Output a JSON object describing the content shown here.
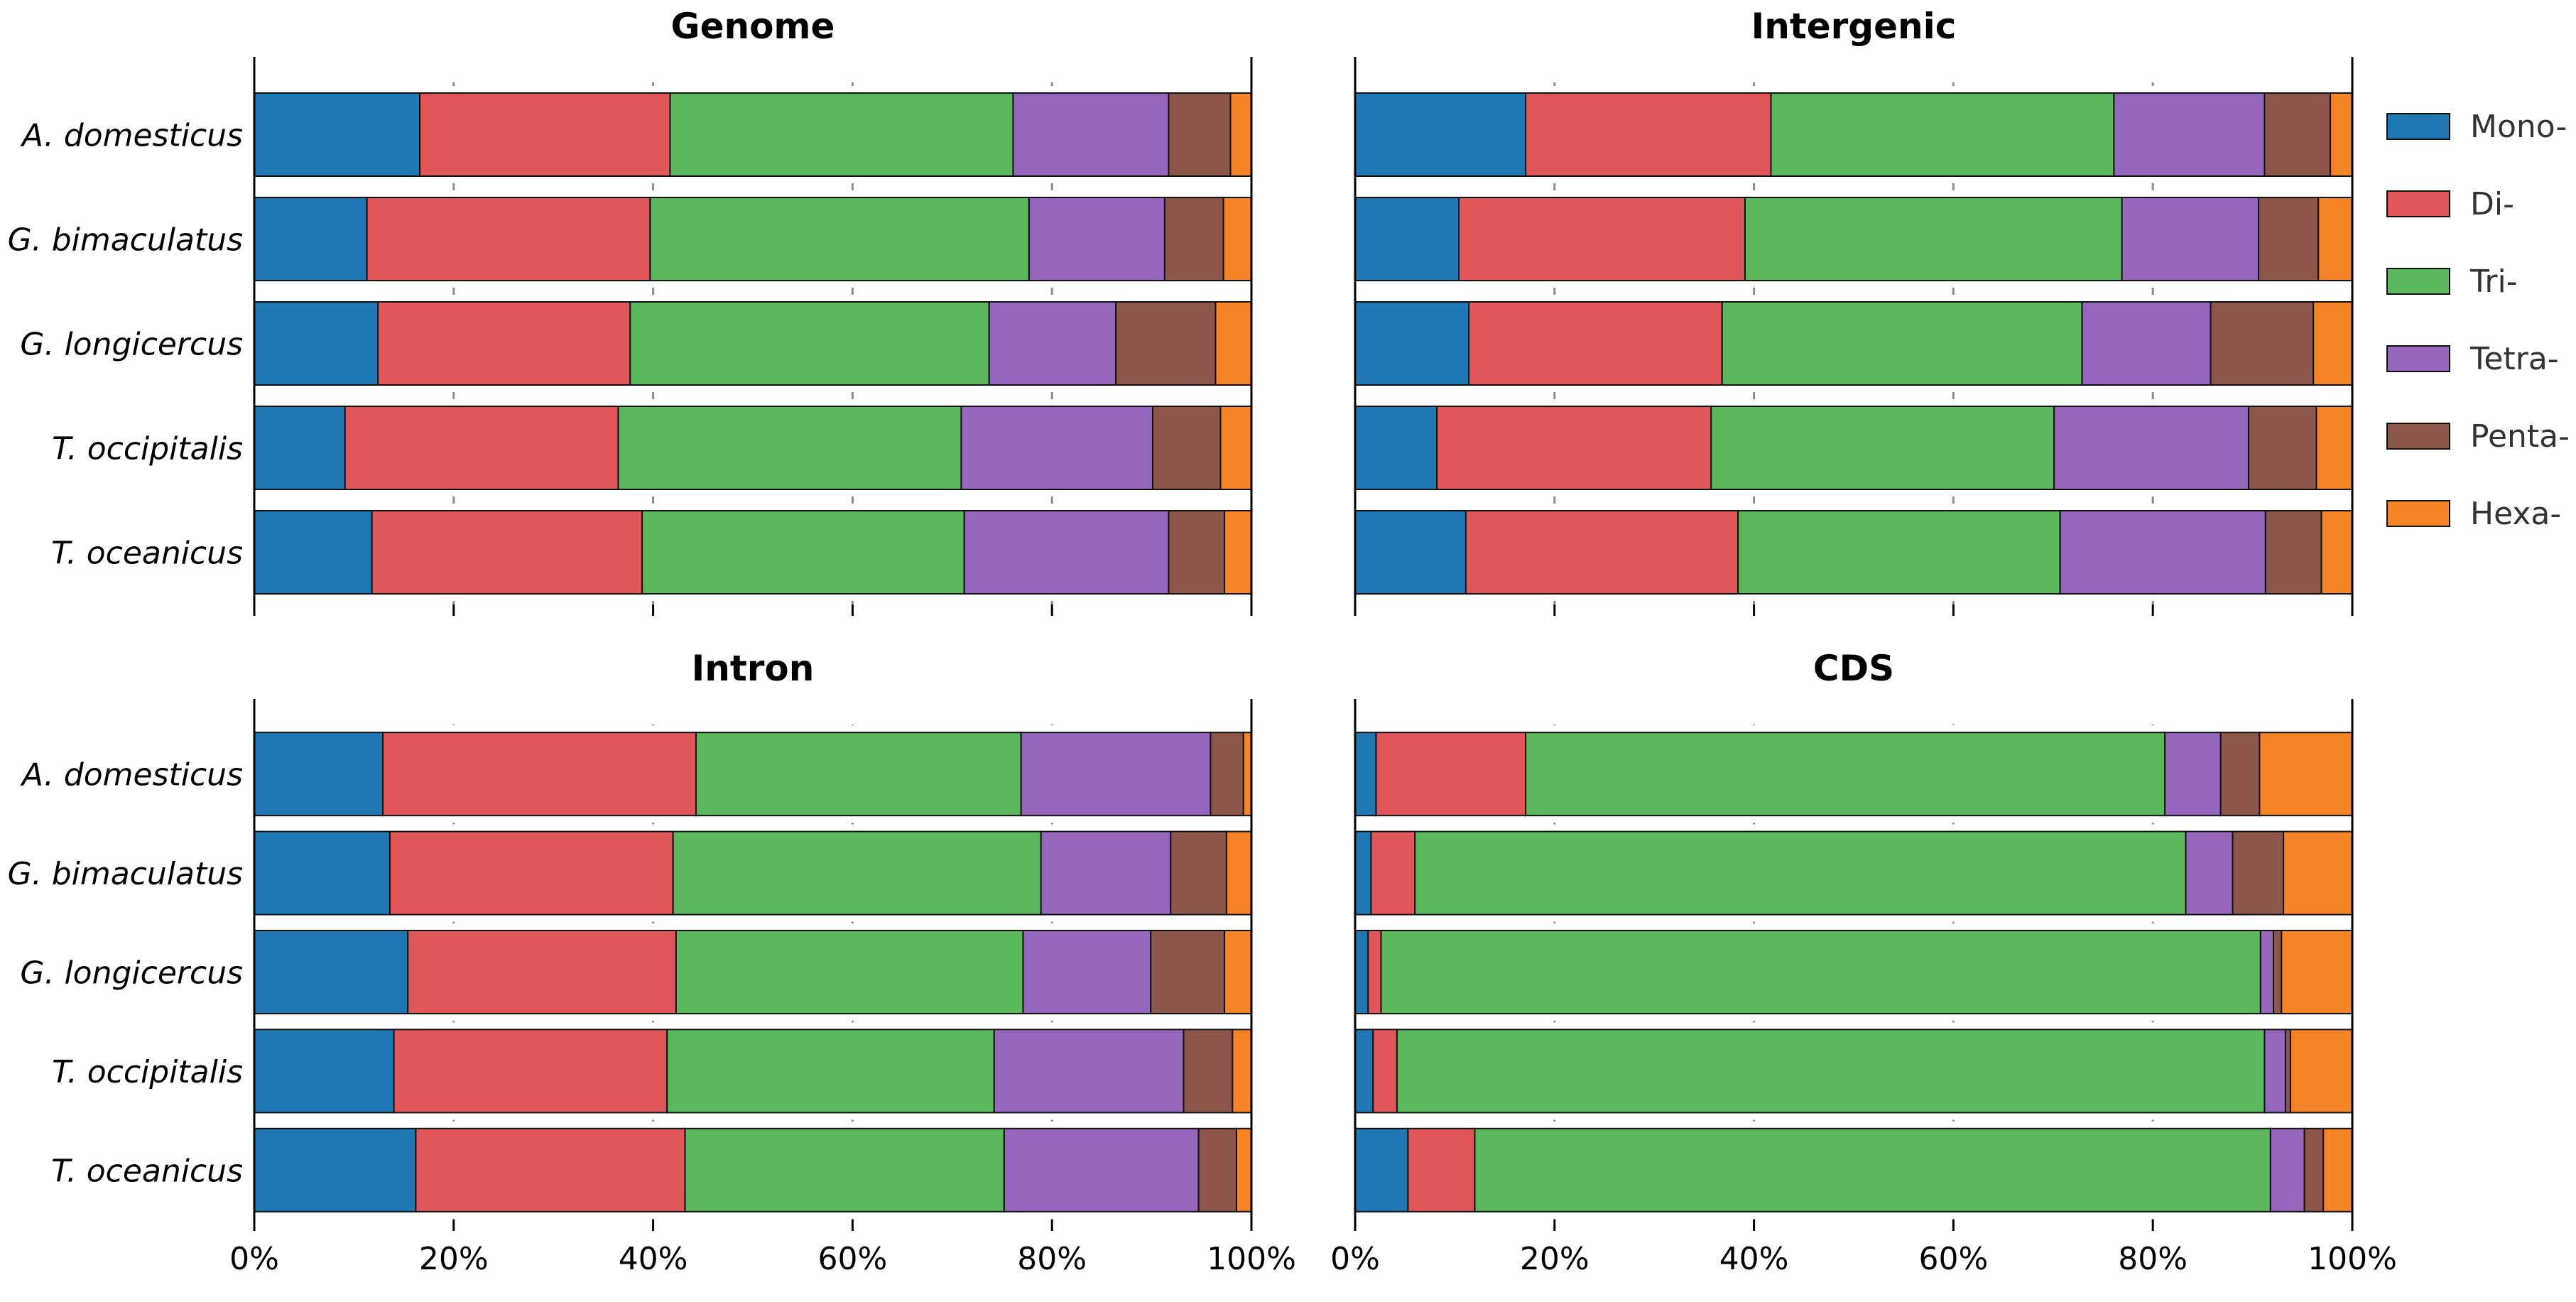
{
  "chart_data": {
    "type": "bar",
    "orientation": "horizontal",
    "stacked": true,
    "legend": {
      "position": "right",
      "entries": [
        {
          "name": "Mono-",
          "color": "#1f77b4"
        },
        {
          "name": "Di-",
          "color": "#e15759"
        },
        {
          "name": "Tri-",
          "color": "#5cb85c"
        },
        {
          "name": "Tetra-",
          "color": "#9467bd"
        },
        {
          "name": "Penta-",
          "color": "#8c564b"
        },
        {
          "name": "Hexa-",
          "color": "#f58426"
        }
      ]
    },
    "xaxis": {
      "range": [
        0,
        100
      ],
      "ticks": [
        "0%",
        "20%",
        "40%",
        "60%",
        "80%",
        "100%"
      ],
      "grid": true
    },
    "categories": [
      "A. domesticus",
      "G. bimaculatus",
      "G. longicercus",
      "T. occipitalis",
      "T. oceanicus"
    ],
    "panels": [
      {
        "title": "Genome",
        "series": [
          {
            "name": "Mono-",
            "values": [
              16.6,
              11.3,
              12.4,
              9.1,
              11.8
            ]
          },
          {
            "name": "Di-",
            "values": [
              25.1,
              28.4,
              25.3,
              27.4,
              27.1
            ]
          },
          {
            "name": "Tri-",
            "values": [
              34.4,
              38.0,
              36.0,
              34.4,
              32.3
            ]
          },
          {
            "name": "Tetra-",
            "values": [
              15.6,
              13.6,
              12.7,
              19.2,
              20.5
            ]
          },
          {
            "name": "Penta-",
            "values": [
              6.2,
              5.9,
              10.0,
              6.8,
              5.6
            ]
          },
          {
            "name": "Hexa-",
            "values": [
              2.1,
              2.8,
              3.6,
              3.1,
              2.7
            ]
          }
        ]
      },
      {
        "title": "Intergenic",
        "series": [
          {
            "name": "Mono-",
            "values": [
              17.1,
              10.4,
              11.4,
              8.2,
              11.1
            ]
          },
          {
            "name": "Di-",
            "values": [
              24.6,
              28.7,
              25.4,
              27.5,
              27.3
            ]
          },
          {
            "name": "Tri-",
            "values": [
              34.4,
              37.8,
              36.1,
              34.4,
              32.3
            ]
          },
          {
            "name": "Tetra-",
            "values": [
              15.1,
              13.7,
              12.9,
              19.5,
              20.6
            ]
          },
          {
            "name": "Penta-",
            "values": [
              6.6,
              6.0,
              10.3,
              6.8,
              5.6
            ]
          },
          {
            "name": "Hexa-",
            "values": [
              2.2,
              3.4,
              3.9,
              3.6,
              3.1
            ]
          }
        ]
      },
      {
        "title": "Intron",
        "series": [
          {
            "name": "Mono-",
            "values": [
              12.9,
              13.6,
              15.4,
              14.0,
              16.2
            ]
          },
          {
            "name": "Di-",
            "values": [
              31.4,
              28.4,
              26.9,
              27.4,
              27.0
            ]
          },
          {
            "name": "Tri-",
            "values": [
              32.6,
              36.9,
              34.8,
              32.8,
              32.0
            ]
          },
          {
            "name": "Tetra-",
            "values": [
              19.0,
              13.0,
              12.8,
              19.0,
              19.5
            ]
          },
          {
            "name": "Penta-",
            "values": [
              3.3,
              5.6,
              7.4,
              4.9,
              3.8
            ]
          },
          {
            "name": "Hexa-",
            "values": [
              0.8,
              2.5,
              2.7,
              1.9,
              1.5
            ]
          }
        ]
      },
      {
        "title": "CDS",
        "series": [
          {
            "name": "Mono-",
            "values": [
              2.1,
              1.6,
              1.3,
              1.8,
              5.3
            ]
          },
          {
            "name": "Di-",
            "values": [
              15.0,
              4.4,
              1.3,
              2.4,
              6.7
            ]
          },
          {
            "name": "Tri-",
            "values": [
              64.1,
              77.3,
              88.2,
              87.0,
              79.8
            ]
          },
          {
            "name": "Tetra-",
            "values": [
              5.6,
              4.7,
              1.3,
              2.1,
              3.4
            ]
          },
          {
            "name": "Penta-",
            "values": [
              3.9,
              5.1,
              0.8,
              0.5,
              1.9
            ]
          },
          {
            "name": "Hexa-",
            "values": [
              9.3,
              6.9,
              7.1,
              6.2,
              2.9
            ]
          }
        ]
      }
    ]
  }
}
